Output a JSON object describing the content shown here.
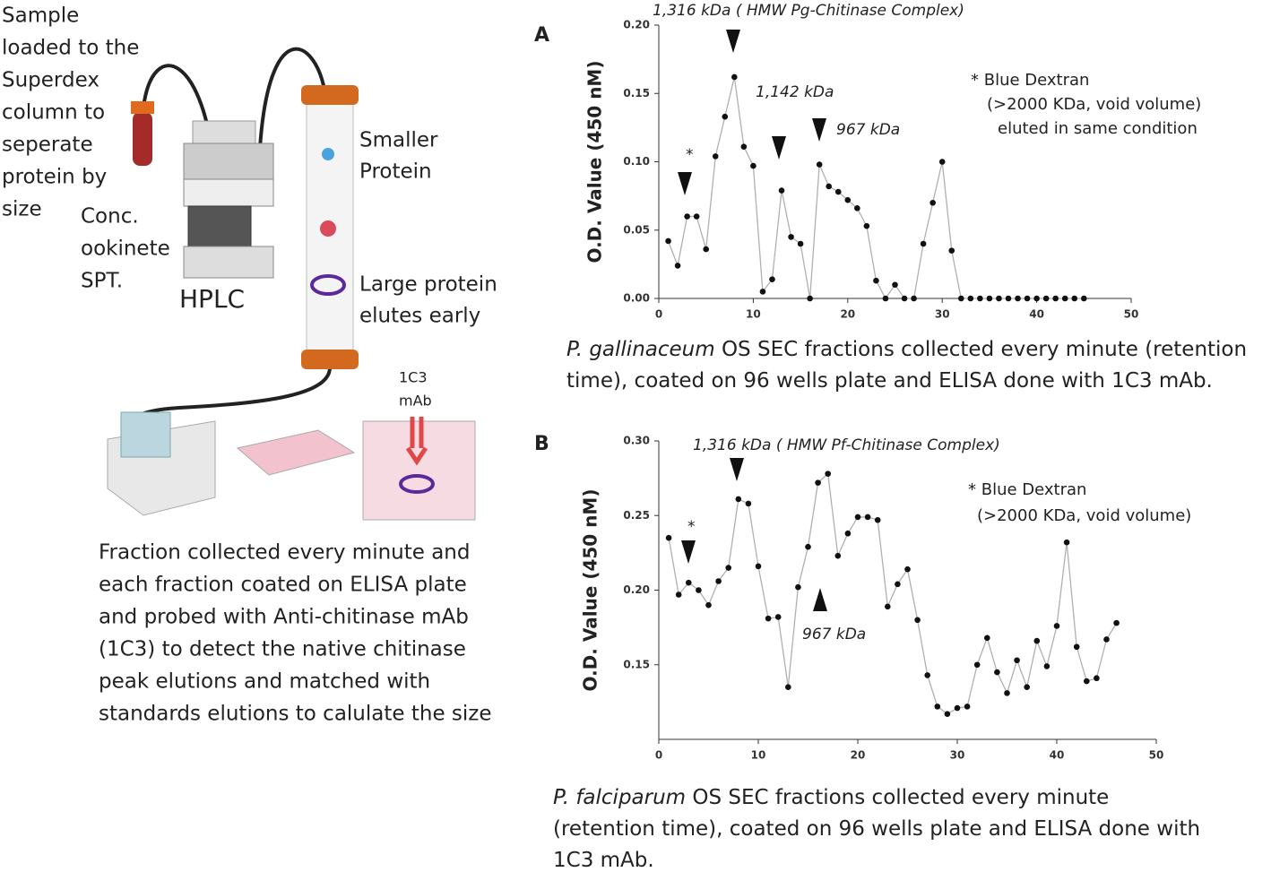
{
  "diagram": {
    "sample_text": [
      "Sample",
      "loaded to the",
      "Superdex",
      "column to",
      "seperate",
      "protein by",
      "size"
    ],
    "conc_text": [
      "Conc.",
      "ookinete",
      "SPT."
    ],
    "hplc_label": "HPLC",
    "smaller_text": [
      "Smaller",
      "Protein"
    ],
    "large_text": [
      "Large protein",
      "elutes early"
    ],
    "mab_text": [
      "1C3",
      "mAb"
    ],
    "fraction_text": [
      "Fraction collected every minute and",
      "each fraction coated on ELISA plate",
      "and probed with Anti-chitinase mAb",
      "(1C3) to detect the native chitinase",
      "peak elutions and matched with",
      "standards elutions to calulate the size"
    ]
  },
  "chart_data": [
    {
      "type": "line",
      "panel": "A",
      "ylabel": "O.D. Value (450 nM)",
      "annotations": [
        "1,316 kDa ( HMW Pg-Chitinase Complex)",
        "1,142 kDa",
        "967 kDa",
        "*"
      ],
      "notes": [
        "* Blue Dextran",
        "(>2000 KDa, void volume)",
        "eluted in same condition"
      ],
      "caption": {
        "italic": "P. gallinaceum",
        "lines": [
          " OS SEC fractions collected every minute (retention",
          "time), coated on 96  wells plate  and ELISA done with 1C3 mAb."
        ]
      },
      "x": [
        1,
        2,
        3,
        4,
        5,
        6,
        7,
        8,
        9,
        10,
        11,
        12,
        13,
        14,
        15,
        16,
        17,
        18,
        19,
        20,
        21,
        22,
        23,
        24,
        25,
        26,
        27,
        28,
        29,
        30,
        31,
        32,
        33,
        34,
        35,
        36,
        37,
        38,
        39,
        40,
        41,
        42,
        43,
        44,
        45
      ],
      "series": [
        {
          "color": "#b0b0b0",
          "marker_color": "#111111",
          "values": [
            0.042,
            0.024,
            0.06,
            0.06,
            0.036,
            0.104,
            0.133,
            0.162,
            0.111,
            0.097,
            0.005,
            0.014,
            0.079,
            0.045,
            0.04,
            0.0,
            0.098,
            0.082,
            0.078,
            0.072,
            0.066,
            0.053,
            0.013,
            0.0,
            0.01,
            0.0,
            0.0,
            0.04,
            0.07,
            0.1,
            0.035,
            0,
            0,
            0,
            0,
            0,
            0,
            0,
            0,
            0,
            0,
            0,
            0,
            0,
            0
          ]
        }
      ],
      "xlim": [
        0,
        50
      ],
      "xticks": [
        0,
        10,
        20,
        30,
        40,
        50
      ],
      "ylim": [
        0,
        0.2
      ],
      "yticks": [
        {
          "value": 0,
          "label": "0.00"
        },
        {
          "value": 0.05,
          "label": "0.05"
        },
        {
          "value": 0.1,
          "label": "0.10"
        },
        {
          "value": 0.15,
          "label": "0.15"
        },
        {
          "value": 0.2,
          "label": "0.20"
        }
      ]
    },
    {
      "type": "line",
      "panel": "B",
      "ylabel": "O.D. Value (450 nM)",
      "annotations": [
        "1,316 kDa ( HMW Pf-Chitinase Complex)",
        "967 kDa",
        "*"
      ],
      "notes": [
        "* Blue Dextran",
        "(>2000 KDa, void volume)"
      ],
      "caption": {
        "italic": "P. falciparum",
        "lines": [
          " OS SEC fractions collected every minute",
          "(retention time), coated on 96  wells plate  and ELISA done with",
          "1C3 mAb."
        ]
      },
      "x": [
        1,
        2,
        3,
        4,
        5,
        6,
        7,
        8,
        9,
        10,
        11,
        12,
        13,
        14,
        15,
        16,
        17,
        18,
        19,
        20,
        21,
        22,
        23,
        24,
        25,
        26,
        27,
        28,
        29,
        30,
        31,
        32,
        33,
        34,
        35,
        36,
        37,
        38,
        39,
        40,
        41,
        42,
        43,
        44,
        45,
        46
      ],
      "series": [
        {
          "color": "#b0b0b0",
          "marker_color": "#111111",
          "values": [
            0.235,
            0.197,
            0.205,
            0.2,
            0.19,
            0.206,
            0.215,
            0.261,
            0.258,
            0.216,
            0.181,
            0.182,
            0.135,
            0.202,
            0.229,
            0.272,
            0.278,
            0.223,
            0.238,
            0.249,
            0.249,
            0.247,
            0.189,
            0.204,
            0.214,
            0.18,
            0.143,
            0.122,
            0.117,
            0.121,
            0.122,
            0.15,
            0.168,
            0.145,
            0.131,
            0.153,
            0.135,
            0.166,
            0.149,
            0.176,
            0.232,
            0.162,
            0.139,
            0.141,
            0.167,
            0.178
          ]
        }
      ],
      "xlim": [
        0,
        50
      ],
      "xticks": [
        0,
        10,
        20,
        30,
        40,
        50
      ],
      "ylim": [
        0.1,
        0.3
      ],
      "yticks": [
        {
          "value": 0.15,
          "label": "0.15"
        },
        {
          "value": 0.2,
          "label": "0.20"
        },
        {
          "value": 0.25,
          "label": "0.25"
        },
        {
          "value": 0.3,
          "label": "0.30"
        }
      ]
    }
  ]
}
